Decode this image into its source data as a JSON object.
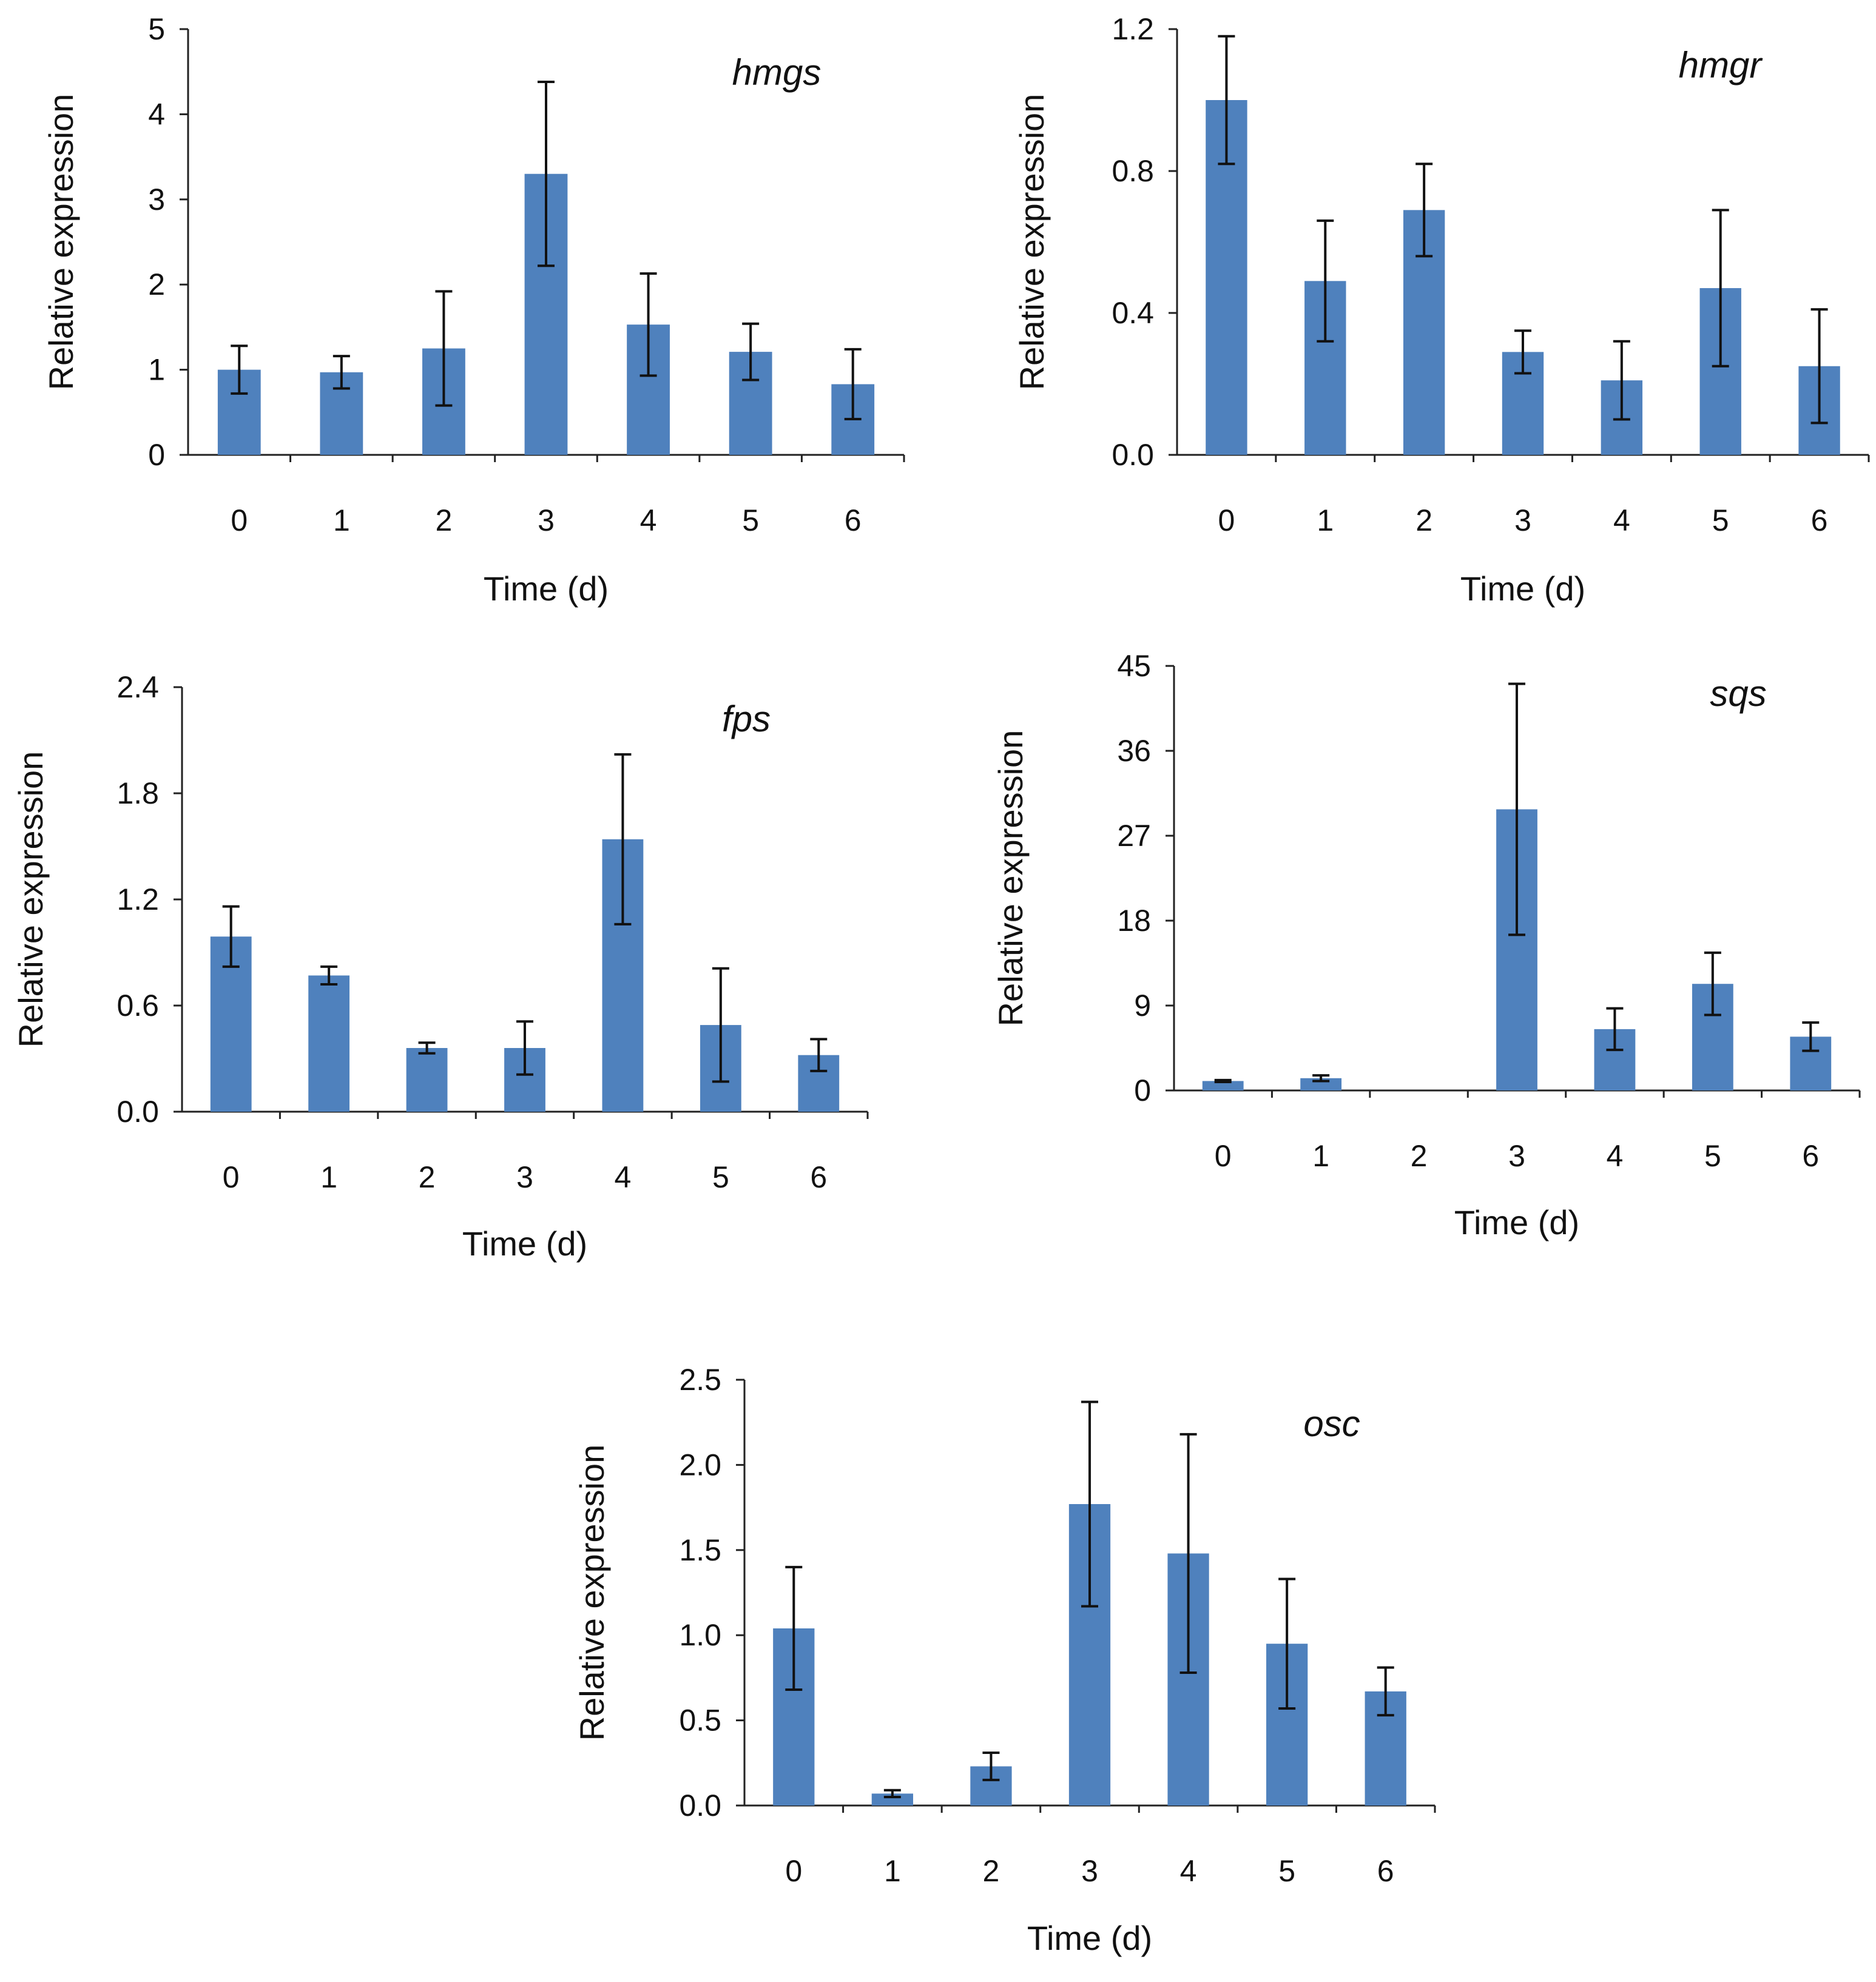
{
  "chart_data": [
    {
      "type": "bar",
      "title": "hmgs",
      "xlabel": "Time (d)",
      "ylabel": "Relative expression",
      "categories": [
        "0",
        "1",
        "2",
        "3",
        "4",
        "5",
        "6"
      ],
      "values": [
        1.0,
        0.97,
        1.25,
        3.3,
        1.53,
        1.21,
        0.83
      ],
      "errors": [
        0.28,
        0.19,
        0.67,
        1.08,
        0.6,
        0.33,
        0.41
      ],
      "ylim": [
        0,
        5
      ],
      "yticks": [
        "0",
        "1",
        "2",
        "3",
        "4",
        "5"
      ],
      "color": "#4f81bd"
    },
    {
      "type": "bar",
      "title": "hmgr",
      "xlabel": "Time (d)",
      "ylabel": "Relative expression",
      "categories": [
        "0",
        "1",
        "2",
        "3",
        "4",
        "5",
        "6"
      ],
      "values": [
        1.0,
        0.49,
        0.69,
        0.29,
        0.21,
        0.47,
        0.25
      ],
      "errors": [
        0.18,
        0.17,
        0.13,
        0.06,
        0.11,
        0.22,
        0.16
      ],
      "ylim": [
        0,
        1.2
      ],
      "yticks": [
        "0.0",
        "0.4",
        "0.8",
        "1.2"
      ],
      "color": "#4f81bd"
    },
    {
      "type": "bar",
      "title": "fps",
      "xlabel": "Time (d)",
      "ylabel": "Relative expression",
      "categories": [
        "0",
        "1",
        "2",
        "3",
        "4",
        "5",
        "6"
      ],
      "values": [
        0.99,
        0.77,
        0.36,
        0.36,
        1.54,
        0.49,
        0.32
      ],
      "errors": [
        0.17,
        0.05,
        0.03,
        0.15,
        0.48,
        0.32,
        0.09
      ],
      "ylim": [
        0,
        2.4
      ],
      "yticks": [
        "0.0",
        "0.6",
        "1.2",
        "1.8",
        "2.4"
      ],
      "color": "#4f81bd"
    },
    {
      "type": "bar",
      "title": "sqs",
      "xlabel": "Time (d)",
      "ylabel": "Relative expression",
      "categories": [
        "0",
        "1",
        "2",
        "3",
        "4",
        "5",
        "6"
      ],
      "values": [
        1.0,
        1.3,
        0.0,
        29.8,
        6.5,
        11.3,
        5.7
      ],
      "errors": [
        0.1,
        0.3,
        0.0,
        13.3,
        2.2,
        3.3,
        1.5
      ],
      "ylim": [
        0,
        45
      ],
      "yticks": [
        "0",
        "9",
        "18",
        "27",
        "36",
        "45"
      ],
      "color": "#4f81bd"
    },
    {
      "type": "bar",
      "title": "osc",
      "xlabel": "Time (d)",
      "ylabel": "Relative expression",
      "categories": [
        "0",
        "1",
        "2",
        "3",
        "4",
        "5",
        "6"
      ],
      "values": [
        1.04,
        0.07,
        0.23,
        1.77,
        1.48,
        0.95,
        0.67
      ],
      "errors": [
        0.36,
        0.02,
        0.08,
        0.6,
        0.7,
        0.38,
        0.14
      ],
      "ylim": [
        0,
        2.5
      ],
      "yticks": [
        "0.0",
        "0.5",
        "1.0",
        "1.5",
        "2.0",
        "2.5"
      ],
      "color": "#4f81bd"
    }
  ]
}
